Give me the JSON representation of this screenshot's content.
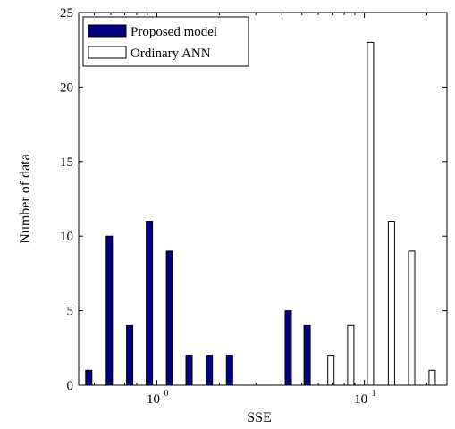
{
  "chart_data": {
    "type": "bar",
    "xlabel": "SSE",
    "ylabel": "Number of data",
    "xscale": "log",
    "xlim": [
      0.42,
      25
    ],
    "ylim": [
      0,
      25
    ],
    "yticks": [
      0,
      5,
      10,
      15,
      20,
      25
    ],
    "xticks": [
      {
        "value": 1,
        "base": "10",
        "exp": "0"
      },
      {
        "value": 10,
        "base": "10",
        "exp": "1"
      }
    ],
    "legend_position": "top-left",
    "grid": false,
    "series": [
      {
        "name": "Proposed model",
        "color": "#000080",
        "x": [
          0.47,
          0.59,
          0.74,
          0.92,
          1.15,
          1.43,
          1.79,
          2.24,
          4.3,
          5.3
        ],
        "values": [
          1,
          10,
          4,
          11,
          9,
          2,
          2,
          2,
          5,
          4
        ]
      },
      {
        "name": "Ordinary ANN",
        "color": "#ffffff",
        "x": [
          6.9,
          8.6,
          10.7,
          13.5,
          16.9,
          21.2
        ],
        "values": [
          2,
          4,
          23,
          11,
          9,
          1
        ]
      }
    ]
  }
}
